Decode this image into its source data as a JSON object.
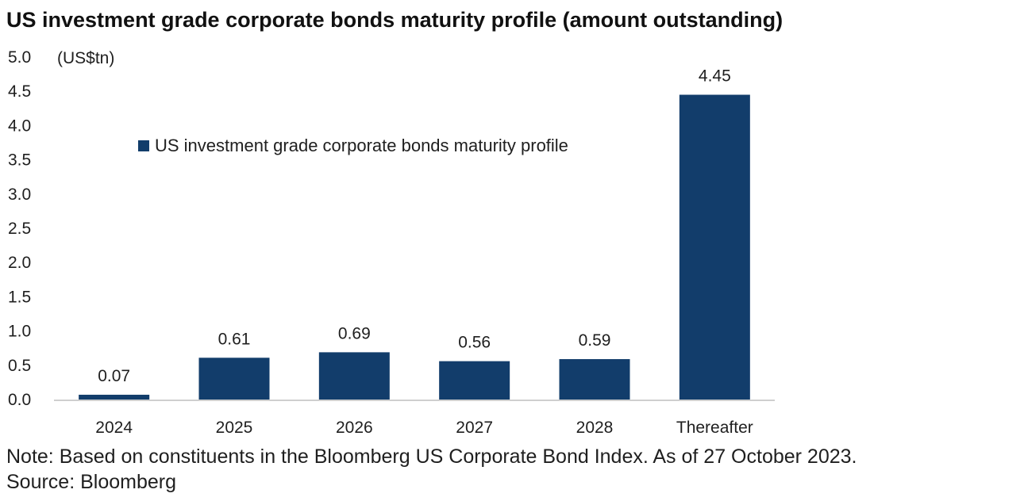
{
  "chart_data": {
    "type": "bar",
    "title": "US investment grade corporate bonds maturity profile (amount outstanding)",
    "unit_label": "(US$tn)",
    "categories": [
      "2024",
      "2025",
      "2026",
      "2027",
      "2028",
      "Thereafter"
    ],
    "series": [
      {
        "name": "US investment grade corporate bonds maturity profile",
        "values": [
          0.07,
          0.61,
          0.69,
          0.56,
          0.59,
          4.45
        ],
        "data_labels": [
          "0.07",
          "0.61",
          "0.69",
          "0.56",
          "0.59",
          "4.45"
        ],
        "color": "#123d6b"
      }
    ],
    "y_ticks": [
      "0.0",
      "0.5",
      "1.0",
      "1.5",
      "2.0",
      "2.5",
      "3.0",
      "3.5",
      "4.0",
      "4.5",
      "5.0"
    ],
    "ylim": [
      0,
      5
    ],
    "grid": false,
    "legend_position": "top-left inside plot"
  },
  "footer": {
    "note": "Note: Based on constituents in the Bloomberg US Corporate Bond Index. As of 27 October 2023.",
    "source": "Source: Bloomberg"
  }
}
